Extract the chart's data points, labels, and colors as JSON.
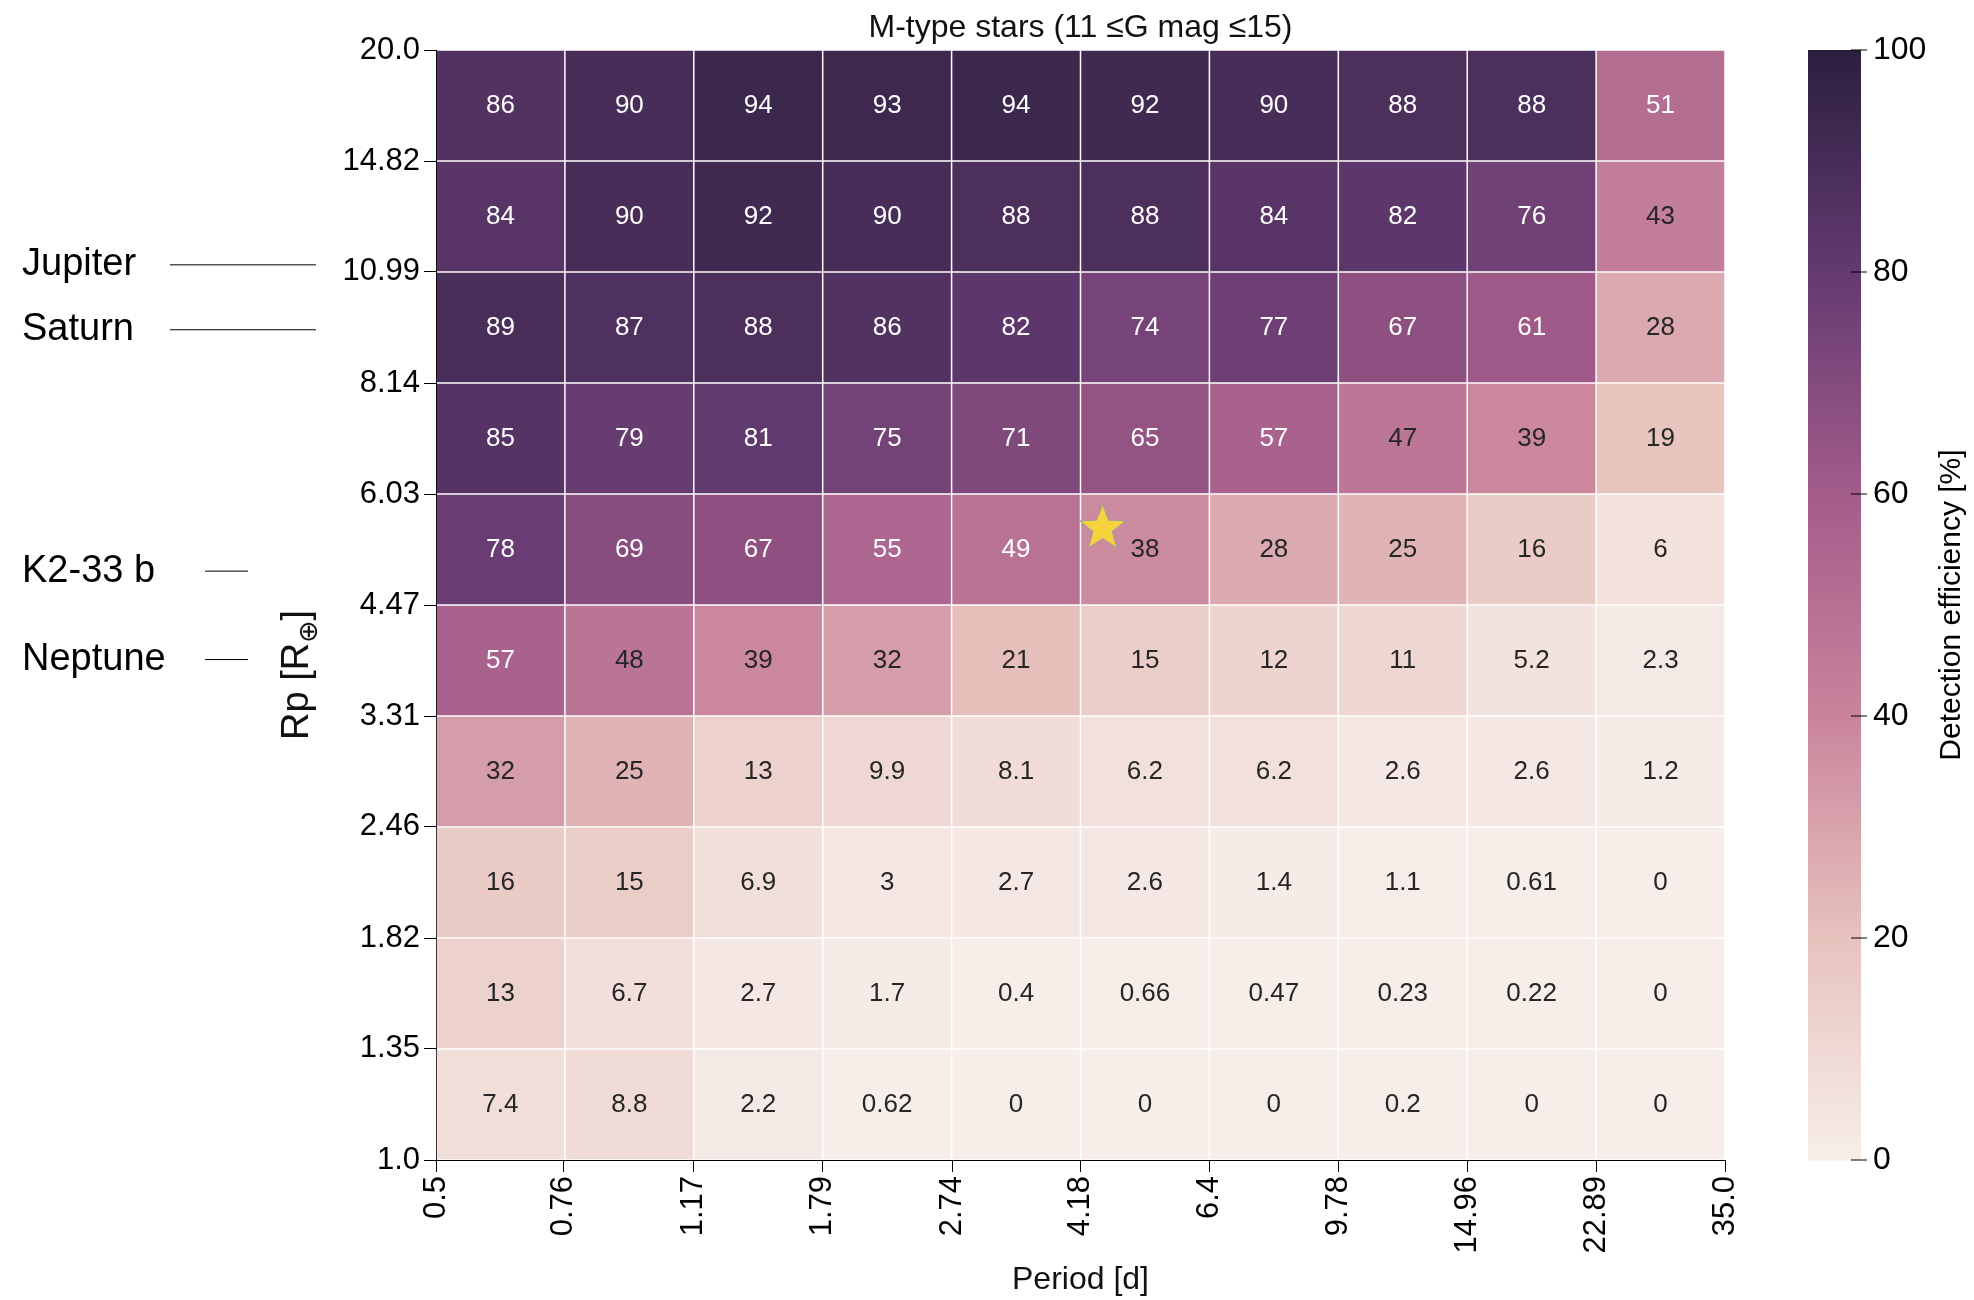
{
  "chart_data": {
    "type": "heatmap",
    "title": "M-type stars (11 ≤G mag ≤15)",
    "xlabel": "Period [d]",
    "ylabel": "Rp [R$_{⊕}$]",
    "clabel": "Detection efficiency [%]",
    "log": "xy",
    "xlim": [
      0.5,
      35.0
    ],
    "xticks": [
      {
        "value": 0.5,
        "label": "0.5"
      },
      0.76,
      1.17,
      1.79,
      2.74,
      4.18,
      6.4,
      9.78,
      14.96,
      22.89,
      {
        "value": 35.0,
        "label": "35.0"
      }
    ],
    "ylim": [
      1.0,
      20.0
    ],
    "yticks": [
      {
        "value": 1.0,
        "label": "1.0"
      },
      1.35,
      1.82,
      2.46,
      3.31,
      4.47,
      6.03,
      8.14,
      10.99,
      14.82,
      {
        "value": 20.0,
        "label": "20.0"
      }
    ],
    "clim": [
      0,
      100
    ],
    "cticks": [
      0,
      20,
      40,
      60,
      80,
      100
    ],
    "cells": [
      [
        86,
        90,
        94,
        93,
        94,
        92,
        90,
        88,
        88,
        51
      ],
      [
        84,
        90,
        92,
        90,
        88,
        88,
        84,
        82,
        76,
        43
      ],
      [
        89,
        87,
        88,
        86,
        82,
        74,
        77,
        67,
        61,
        28
      ],
      [
        85,
        79,
        81,
        75,
        71,
        65,
        57,
        47,
        39,
        19
      ],
      [
        78,
        69,
        67,
        55,
        49,
        38,
        28,
        25,
        16,
        6
      ],
      [
        57,
        48,
        39,
        32,
        21,
        15,
        12,
        11,
        5.2,
        2.3
      ],
      [
        32,
        25,
        13,
        9.9,
        8.1,
        6.2,
        6.2,
        2.6,
        2.6,
        1.2
      ],
      [
        16,
        15,
        6.9,
        3,
        2.7,
        2.6,
        1.4,
        1.1,
        0.61,
        0
      ],
      [
        13,
        6.7,
        2.7,
        1.7,
        0.4,
        0.66,
        0.47,
        0.23,
        0.22,
        0
      ],
      [
        7.4,
        8.8,
        2.2,
        0.62,
        0,
        0,
        0,
        0.2,
        0,
        0
      ]
    ],
    "data_labels": true,
    "series": [
      {
        "type": "scatter",
        "x": [
          4.5
        ],
        "values": [
          5.5
        ],
        "value_labels": [
          null
        ],
        "color": "#f6d33c",
        "marker": "star"
      }
    ],
    "ref_lines": [
      {
        "axis": "y",
        "value": 11.2,
        "label": "Jupiter",
        "color": "#000000"
      },
      {
        "axis": "y",
        "value": 9.4,
        "label": "Saturn",
        "color": "#000000"
      },
      {
        "axis": "y",
        "value": 4.9,
        "label": "K2-33 b",
        "color": "#000000"
      },
      {
        "axis": "y",
        "value": 3.86,
        "label": "Neptune",
        "color": "#000000"
      }
    ],
    "grid": false
  }
}
